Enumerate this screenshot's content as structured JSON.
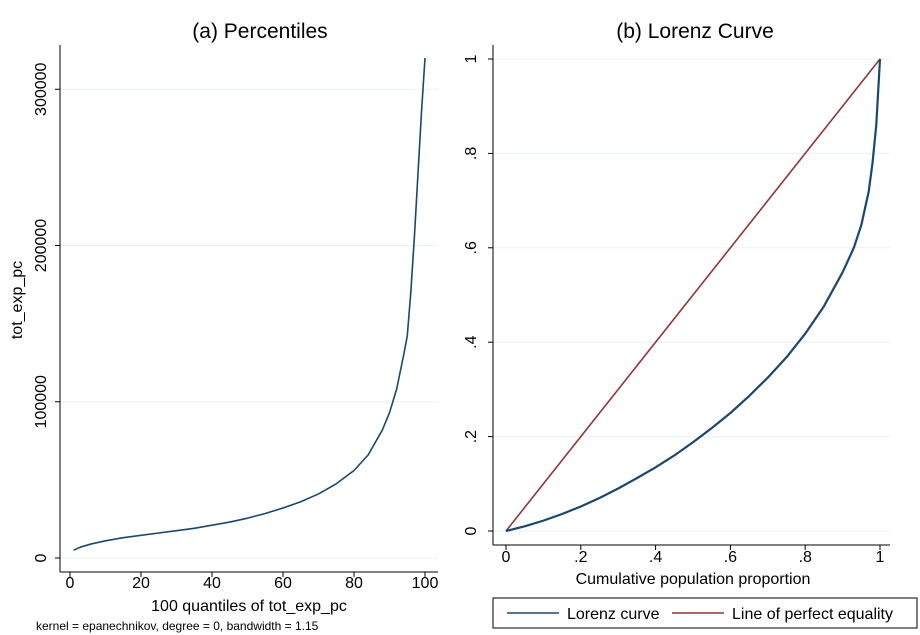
{
  "chart_data": [
    {
      "type": "line",
      "title": "(a) Percentiles",
      "xlabel": "100 quantiles of tot_exp_pc",
      "ylabel": "tot_exp_pc",
      "note": "kernel = epanechnikov, degree = 0, bandwidth = 1.15",
      "xlim": [
        0,
        100
      ],
      "ylim": [
        0,
        320000
      ],
      "x_ticks": [
        0,
        20,
        40,
        60,
        80,
        100
      ],
      "x_tick_labels": [
        "0",
        "20",
        "40",
        "60",
        "80",
        "100"
      ],
      "y_ticks": [
        0,
        100000,
        200000,
        300000
      ],
      "y_tick_labels": [
        "0",
        "100000",
        "200000",
        "300000"
      ],
      "grid": "horizontal",
      "series": [
        {
          "color": "#1a476f",
          "points": [
            [
              1,
              5000
            ],
            [
              3,
              7000
            ],
            [
              6,
              9000
            ],
            [
              10,
              11000
            ],
            [
              15,
              13000
            ],
            [
              20,
              14500
            ],
            [
              25,
              16000
            ],
            [
              30,
              17500
            ],
            [
              35,
              19000
            ],
            [
              40,
              21000
            ],
            [
              45,
              23000
            ],
            [
              50,
              25500
            ],
            [
              55,
              28500
            ],
            [
              60,
              32000
            ],
            [
              65,
              36000
            ],
            [
              70,
              41000
            ],
            [
              75,
              47500
            ],
            [
              80,
              56000
            ],
            [
              84,
              66000
            ],
            [
              88,
              82000
            ],
            [
              90,
              93000
            ],
            [
              92,
              108000
            ],
            [
              94,
              130000
            ],
            [
              95,
              142000
            ],
            [
              96,
              170000
            ],
            [
              97,
              205000
            ],
            [
              98,
              245000
            ],
            [
              99,
              285000
            ],
            [
              100,
              320000
            ]
          ]
        }
      ]
    },
    {
      "type": "line",
      "title": "(b) Lorenz Curve",
      "xlabel": "Cumulative population proportion",
      "ylabel": "",
      "xlim": [
        0,
        1
      ],
      "ylim": [
        0,
        1
      ],
      "x_ticks": [
        0,
        0.2,
        0.4,
        0.6,
        0.8,
        1
      ],
      "x_tick_labels": [
        "0",
        ".2",
        ".4",
        ".6",
        ".8",
        "1"
      ],
      "y_ticks": [
        0,
        0.2,
        0.4,
        0.6,
        0.8,
        1
      ],
      "y_tick_labels": [
        "0",
        ".2",
        ".4",
        ".6",
        ".8",
        "1"
      ],
      "grid": "horizontal",
      "legend_position": "bottom",
      "series": [
        {
          "name": "Lorenz curve",
          "color": "#1a476f",
          "points": [
            [
              0,
              0
            ],
            [
              0.05,
              0.01
            ],
            [
              0.1,
              0.022
            ],
            [
              0.15,
              0.036
            ],
            [
              0.2,
              0.052
            ],
            [
              0.25,
              0.07
            ],
            [
              0.3,
              0.09
            ],
            [
              0.35,
              0.112
            ],
            [
              0.4,
              0.135
            ],
            [
              0.45,
              0.16
            ],
            [
              0.5,
              0.188
            ],
            [
              0.55,
              0.218
            ],
            [
              0.6,
              0.25
            ],
            [
              0.65,
              0.286
            ],
            [
              0.7,
              0.325
            ],
            [
              0.75,
              0.368
            ],
            [
              0.8,
              0.418
            ],
            [
              0.85,
              0.476
            ],
            [
              0.9,
              0.548
            ],
            [
              0.93,
              0.6
            ],
            [
              0.95,
              0.648
            ],
            [
              0.97,
              0.72
            ],
            [
              0.98,
              0.78
            ],
            [
              0.99,
              0.86
            ],
            [
              1,
              1
            ]
          ]
        },
        {
          "name": "Line of perfect equality",
          "color": "#90353b",
          "points": [
            [
              0,
              0
            ],
            [
              1,
              1
            ]
          ]
        }
      ]
    }
  ]
}
